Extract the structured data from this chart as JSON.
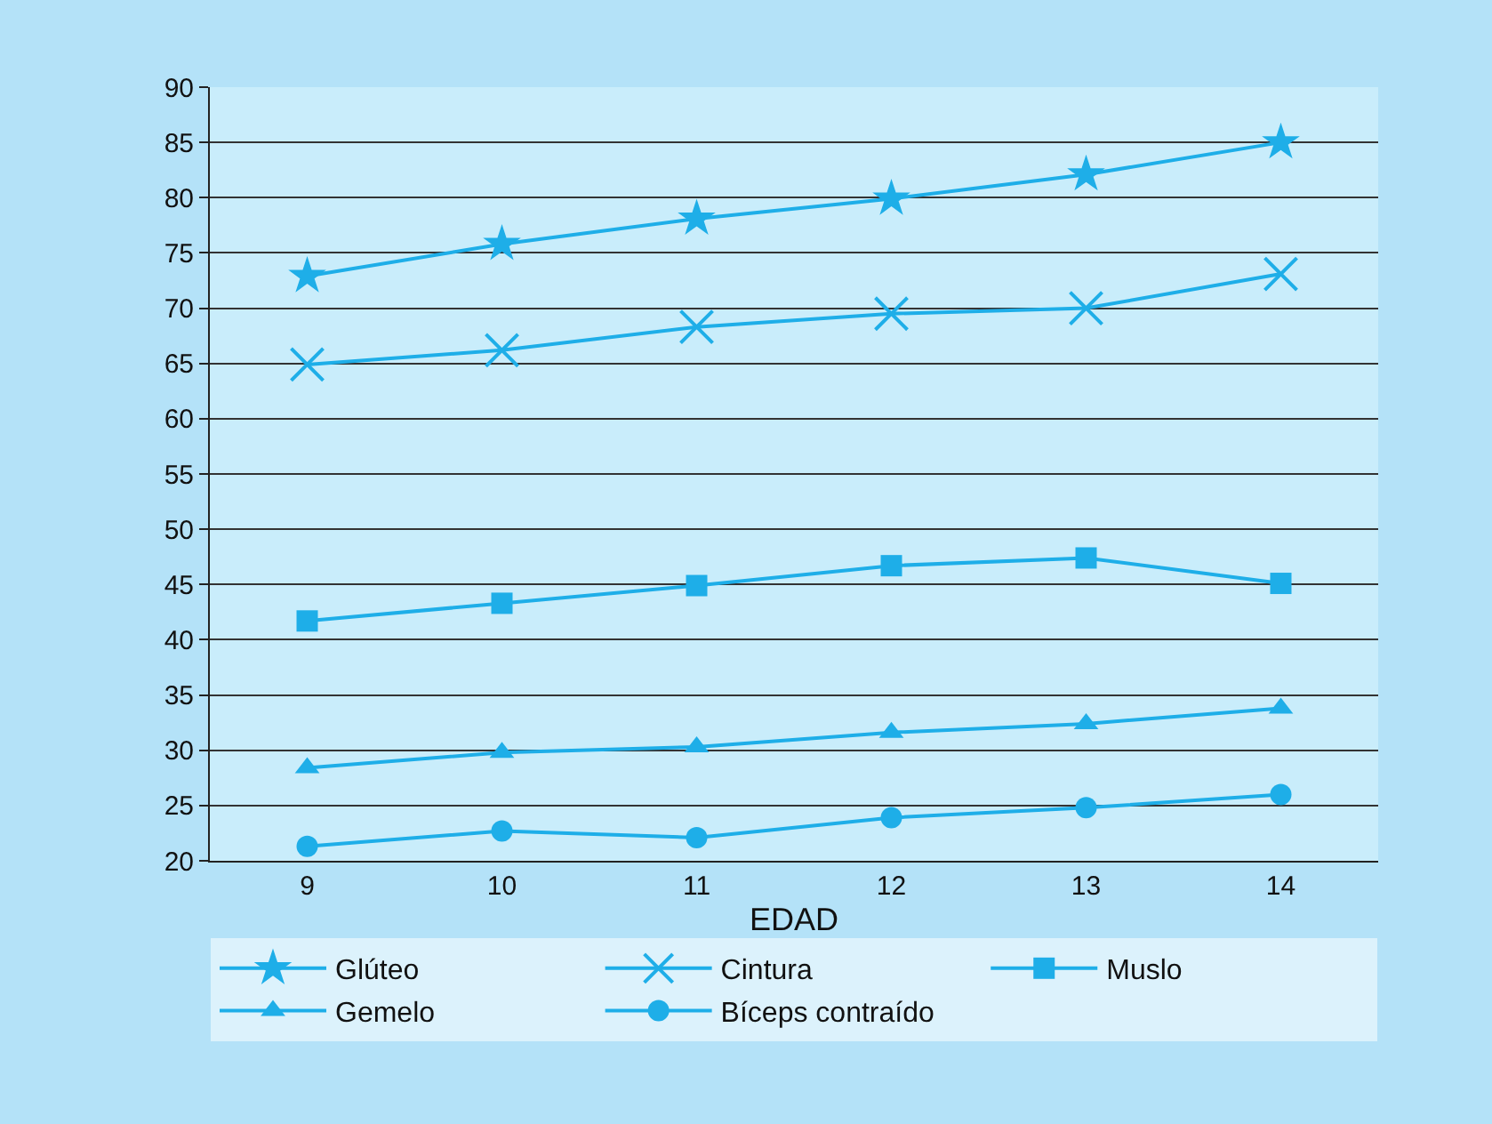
{
  "chart_data": {
    "type": "line",
    "xlabel": "EDAD",
    "categories": [
      "9",
      "10",
      "11",
      "12",
      "13",
      "14"
    ],
    "ylim": [
      20,
      90
    ],
    "yticks": [
      20,
      25,
      30,
      35,
      40,
      45,
      50,
      55,
      60,
      65,
      70,
      75,
      80,
      85,
      90
    ],
    "grid": "y",
    "legend": "bottom",
    "series": [
      {
        "name": "Glúteo",
        "color": "#1eaee8",
        "marker": "star",
        "values": [
          72.9,
          75.8,
          78.1,
          79.9,
          82.1,
          85
        ]
      },
      {
        "name": "Cintura",
        "color": "#1eaee8",
        "marker": "cross",
        "values": [
          64.9,
          66.2,
          68.3,
          69.5,
          70,
          73.1
        ]
      },
      {
        "name": "Muslo",
        "color": "#1eaee8",
        "marker": "square",
        "values": [
          41.7,
          43.3,
          44.9,
          46.7,
          47.4,
          45.1
        ]
      },
      {
        "name": "Gemelo",
        "color": "#1eaee8",
        "marker": "triangle",
        "values": [
          28.4,
          29.8,
          30.3,
          31.6,
          32.4,
          33.8
        ]
      },
      {
        "name": "Bíceps contraído",
        "color": "#1eaee8",
        "marker": "circle",
        "values": [
          21.3,
          22.7,
          22.1,
          23.9,
          24.8,
          26
        ]
      }
    ]
  }
}
